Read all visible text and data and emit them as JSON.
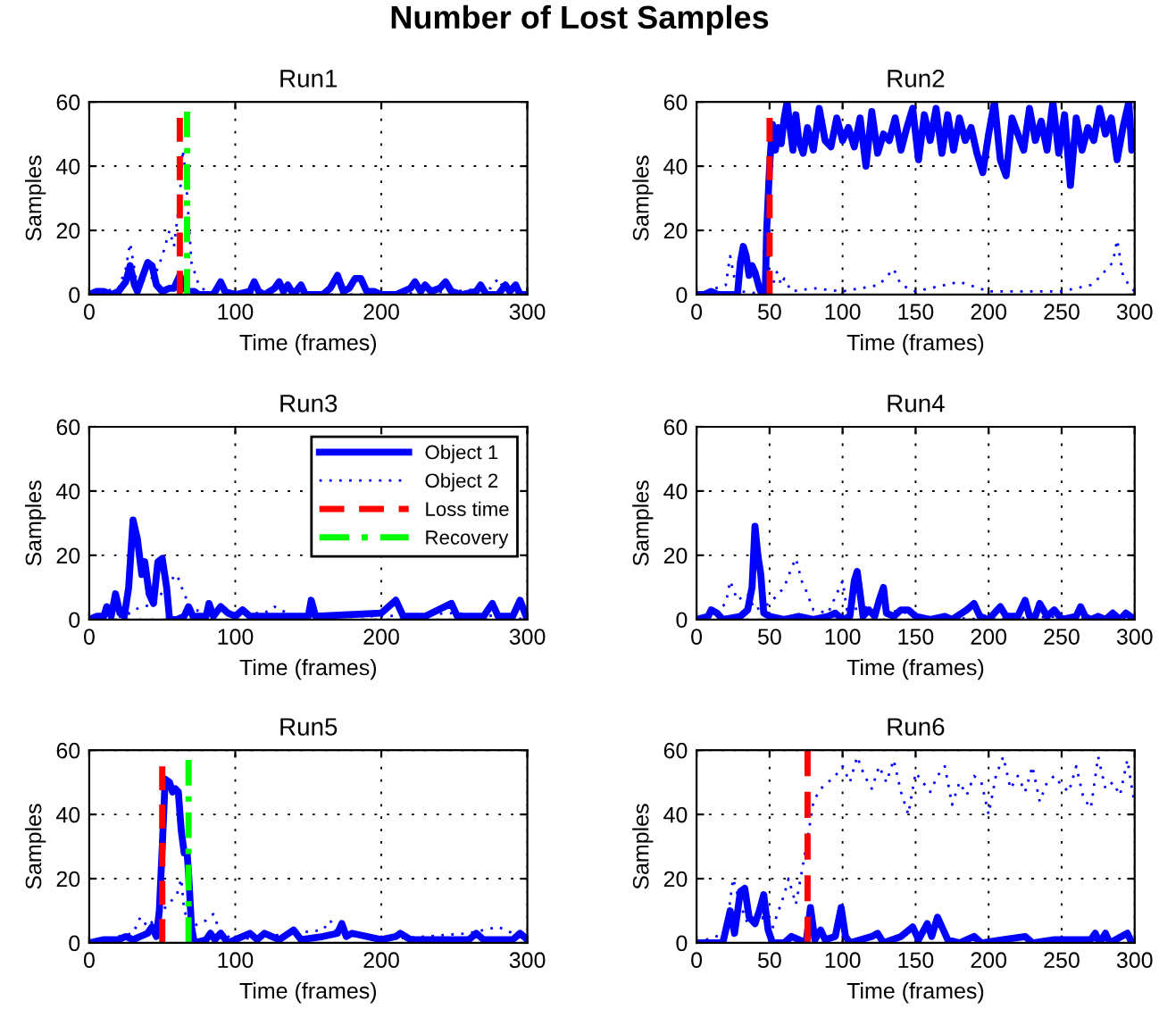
{
  "chart_data": [
    {
      "type": "line",
      "annotations": [
        "Number of Lost Samples"
      ],
      "title": "Run1",
      "xlabel": "Time (frames)",
      "ylabel": "Samples",
      "xlim": [
        0,
        300
      ],
      "ylim": [
        0,
        60
      ],
      "xticks": [
        0,
        100,
        200,
        300
      ],
      "yticks": [
        0,
        20,
        40,
        60
      ],
      "grid": true,
      "legend": false,
      "series": [
        {
          "color": "#0000ff",
          "line_style": "solid",
          "x": [
            0,
            5,
            10,
            15,
            20,
            25,
            28,
            31,
            33,
            36,
            40,
            43,
            46,
            50,
            55,
            58,
            62,
            65,
            68,
            72,
            75,
            85,
            90,
            93,
            100,
            110,
            113,
            116,
            120,
            127,
            130,
            133,
            136,
            140,
            145,
            148,
            160,
            165,
            170,
            174,
            178,
            182,
            186,
            190,
            195,
            200,
            210,
            220,
            223,
            227,
            230,
            234,
            240,
            244,
            248,
            255,
            265,
            268,
            272,
            280,
            285,
            288,
            292,
            295,
            300
          ],
          "values": [
            0,
            1,
            1,
            0,
            1,
            4,
            9,
            3,
            1,
            5,
            10,
            9,
            3,
            1,
            2,
            2,
            6,
            2,
            1,
            1,
            0,
            0,
            4,
            1,
            0,
            1,
            4,
            1,
            0,
            2,
            4,
            1,
            3,
            0,
            3,
            0,
            0,
            2,
            6,
            1,
            2,
            5,
            5,
            1,
            1,
            0,
            0,
            2,
            4,
            1,
            3,
            1,
            2,
            4,
            1,
            0,
            1,
            3,
            0,
            0,
            3,
            1,
            3,
            0,
            0
          ]
        },
        {
          "color": "#0000ff",
          "line_style": "dotted",
          "x": [
            0,
            20,
            25,
            28,
            32,
            40,
            45,
            50,
            55,
            58,
            62,
            64,
            66,
            70,
            75,
            80,
            100,
            150,
            200,
            250,
            275,
            280,
            285,
            300
          ],
          "values": [
            0,
            2,
            8,
            16,
            5,
            4,
            6,
            12,
            20,
            15,
            30,
            45,
            38,
            10,
            3,
            1,
            1,
            0,
            0,
            1,
            2,
            5,
            1,
            0
          ]
        },
        {
          "color": "#ff0000",
          "line_style": "dashed",
          "x": [
            62,
            62
          ],
          "values": [
            0,
            55
          ]
        },
        {
          "color": "#00ff00",
          "line_style": "dashdot",
          "x": [
            67,
            67
          ],
          "values": [
            0,
            57
          ]
        }
      ]
    },
    {
      "type": "line",
      "title": "Run2",
      "xlabel": "Time (frames)",
      "ylabel": "Samples",
      "xlim": [
        0,
        300
      ],
      "ylim": [
        0,
        60
      ],
      "xticks": [
        0,
        50,
        100,
        150,
        200,
        250,
        300
      ],
      "yticks": [
        0,
        20,
        40,
        60
      ],
      "grid": true,
      "legend": false,
      "series": [
        {
          "color": "#0000ff",
          "line_style": "solid",
          "x": [
            0,
            5,
            10,
            15,
            25,
            28,
            30,
            32,
            34,
            36,
            38,
            40,
            43,
            45,
            47,
            48,
            50,
            52,
            54,
            56,
            58,
            60,
            62,
            64,
            66,
            68,
            70,
            73,
            76,
            80,
            84,
            88,
            92,
            96,
            100,
            104,
            108,
            112,
            116,
            120,
            124,
            128,
            132,
            136,
            140,
            144,
            148,
            152,
            156,
            160,
            164,
            168,
            172,
            176,
            180,
            184,
            188,
            192,
            196,
            200,
            204,
            208,
            212,
            216,
            220,
            224,
            228,
            232,
            236,
            240,
            244,
            248,
            252,
            256,
            260,
            264,
            268,
            272,
            276,
            280,
            284,
            288,
            292,
            296,
            298,
            300
          ],
          "values": [
            0,
            0,
            1,
            0,
            0,
            0,
            10,
            15,
            12,
            6,
            9,
            7,
            2,
            0,
            0,
            20,
            40,
            53,
            45,
            52,
            47,
            55,
            60,
            52,
            45,
            56,
            48,
            44,
            52,
            45,
            58,
            48,
            46,
            55,
            48,
            52,
            46,
            55,
            40,
            57,
            44,
            50,
            48,
            55,
            45,
            52,
            58,
            42,
            56,
            48,
            58,
            44,
            56,
            45,
            55,
            48,
            52,
            44,
            38,
            50,
            60,
            42,
            37,
            55,
            50,
            45,
            58,
            48,
            54,
            45,
            60,
            44,
            56,
            34,
            55,
            45,
            52,
            48,
            58,
            50,
            55,
            42,
            52,
            60,
            45,
            50
          ]
        },
        {
          "color": "#0000ff",
          "line_style": "dotted",
          "x": [
            0,
            20,
            23,
            26,
            30,
            50,
            55,
            58,
            60,
            65,
            80,
            100,
            125,
            135,
            140,
            150,
            180,
            200,
            250,
            270,
            275,
            285,
            288,
            292,
            296,
            300
          ],
          "values": [
            0,
            3,
            12,
            5,
            1,
            0,
            7,
            3,
            5,
            1,
            2,
            1,
            3,
            8,
            3,
            1,
            4,
            1,
            1,
            3,
            5,
            10,
            17,
            6,
            3,
            1
          ]
        },
        {
          "color": "#ff0000",
          "line_style": "dashed",
          "x": [
            50,
            50
          ],
          "values": [
            0,
            55
          ]
        }
      ]
    },
    {
      "type": "line",
      "title": "Run3",
      "xlabel": "Time (frames)",
      "ylabel": "Samples",
      "xlim": [
        0,
        300
      ],
      "ylim": [
        0,
        60
      ],
      "xticks": [
        0,
        100,
        200,
        300
      ],
      "yticks": [
        0,
        20,
        40,
        60
      ],
      "grid": true,
      "legend": "top right",
      "series": [
        {
          "name": "Object 1",
          "color": "#0000ff",
          "line_style": "solid",
          "x": [
            0,
            5,
            10,
            12,
            15,
            18,
            21,
            24,
            27,
            30,
            33,
            36,
            38,
            41,
            44,
            47,
            50,
            53,
            55,
            60,
            65,
            68,
            71,
            80,
            82,
            85,
            90,
            95,
            100,
            105,
            110,
            150,
            152,
            155,
            200,
            205,
            210,
            215,
            230,
            248,
            252,
            270,
            276,
            280,
            290,
            295,
            300
          ],
          "values": [
            0,
            1,
            1,
            4,
            1,
            8,
            2,
            1,
            10,
            31,
            25,
            14,
            18,
            8,
            5,
            18,
            19,
            10,
            0,
            0,
            1,
            4,
            1,
            1,
            5,
            1,
            4,
            2,
            1,
            3,
            1,
            1,
            6,
            1,
            2,
            4,
            6,
            1,
            1,
            5,
            1,
            1,
            5,
            1,
            1,
            6,
            0
          ]
        },
        {
          "name": "Object 2",
          "color": "#0000ff",
          "line_style": "dotted",
          "x": [
            0,
            25,
            30,
            45,
            55,
            60,
            65,
            70,
            90,
            120,
            127,
            140,
            200,
            250,
            280,
            300
          ],
          "values": [
            0,
            1,
            3,
            5,
            12,
            14,
            8,
            3,
            2,
            2,
            4,
            1,
            1,
            2,
            1,
            0
          ]
        },
        {
          "name": "Loss time",
          "color": "#ff0000",
          "line_style": "dashed"
        },
        {
          "name": "Recovery",
          "color": "#00ff00",
          "line_style": "dashdot"
        }
      ]
    },
    {
      "type": "line",
      "title": "Run4",
      "xlabel": "Time (frames)",
      "ylabel": "Samples",
      "xlim": [
        0,
        300
      ],
      "ylim": [
        0,
        60
      ],
      "xticks": [
        0,
        50,
        100,
        150,
        200,
        250,
        300
      ],
      "yticks": [
        0,
        20,
        40,
        60
      ],
      "grid": true,
      "legend": false,
      "series": [
        {
          "color": "#0000ff",
          "line_style": "solid",
          "x": [
            0,
            8,
            10,
            14,
            18,
            30,
            35,
            38,
            40,
            42,
            44,
            46,
            50,
            60,
            70,
            80,
            90,
            95,
            100,
            105,
            108,
            110,
            112,
            114,
            118,
            122,
            125,
            128,
            130,
            135,
            140,
            145,
            150,
            160,
            170,
            175,
            185,
            190,
            194,
            200,
            208,
            212,
            220,
            225,
            228,
            232,
            235,
            240,
            245,
            250,
            260,
            263,
            266,
            270,
            275,
            280,
            285,
            290,
            294,
            300
          ],
          "values": [
            0,
            1,
            3,
            2,
            0,
            1,
            3,
            10,
            29,
            20,
            14,
            2,
            1,
            0,
            1,
            0,
            1,
            2,
            0,
            1,
            12,
            15,
            8,
            1,
            3,
            1,
            6,
            10,
            2,
            1,
            3,
            3,
            1,
            0,
            1,
            0,
            3,
            5,
            1,
            0,
            4,
            1,
            1,
            6,
            1,
            1,
            5,
            1,
            3,
            0,
            1,
            4,
            1,
            0,
            1,
            0,
            2,
            0,
            2,
            0
          ]
        },
        {
          "color": "#0000ff",
          "line_style": "dotted",
          "x": [
            0,
            15,
            20,
            23,
            28,
            35,
            40,
            50,
            60,
            65,
            68,
            72,
            75,
            80,
            90,
            95,
            100,
            103,
            120,
            130,
            145,
            150,
            200,
            250,
            300
          ],
          "values": [
            0,
            3,
            5,
            12,
            6,
            8,
            3,
            5,
            10,
            16,
            19,
            12,
            9,
            3,
            2,
            7,
            12,
            3,
            4,
            3,
            2,
            1,
            0,
            1,
            0
          ]
        }
      ]
    },
    {
      "type": "line",
      "title": "Run5",
      "xlabel": "Time (frames)",
      "ylabel": "Samples",
      "xlim": [
        0,
        300
      ],
      "ylim": [
        0,
        60
      ],
      "xticks": [
        0,
        100,
        200,
        300
      ],
      "yticks": [
        0,
        20,
        40,
        60
      ],
      "grid": true,
      "legend": false,
      "series": [
        {
          "color": "#0000ff",
          "line_style": "solid",
          "x": [
            0,
            10,
            20,
            25,
            30,
            35,
            40,
            43,
            46,
            48,
            50,
            52,
            55,
            57,
            59,
            61,
            63,
            65,
            67,
            68,
            70,
            72,
            80,
            83,
            86,
            90,
            95,
            100,
            110,
            115,
            120,
            130,
            140,
            145,
            160,
            170,
            173,
            176,
            180,
            190,
            200,
            210,
            213,
            220,
            250,
            260,
            265,
            270,
            290,
            295,
            300
          ],
          "values": [
            0,
            1,
            1,
            2,
            1,
            2,
            3,
            5,
            2,
            10,
            30,
            51,
            50,
            47,
            48,
            47,
            35,
            28,
            28,
            22,
            5,
            0,
            1,
            3,
            1,
            3,
            0,
            1,
            3,
            1,
            3,
            1,
            4,
            1,
            2,
            3,
            6,
            2,
            3,
            2,
            1,
            2,
            3,
            1,
            1,
            1,
            3,
            1,
            1,
            3,
            1
          ]
        },
        {
          "color": "#0000ff",
          "line_style": "dotted",
          "x": [
            0,
            20,
            30,
            35,
            40,
            50,
            60,
            63,
            65,
            70,
            80,
            85,
            90,
            100,
            160,
            165,
            170,
            200,
            260,
            280,
            300
          ],
          "values": [
            0,
            2,
            3,
            8,
            5,
            10,
            15,
            20,
            10,
            5,
            7,
            9,
            3,
            1,
            4,
            7,
            3,
            1,
            3,
            5,
            1
          ]
        },
        {
          "color": "#ff0000",
          "line_style": "dashed",
          "x": [
            50,
            50
          ],
          "values": [
            0,
            55
          ]
        },
        {
          "color": "#00ff00",
          "line_style": "dashdot",
          "x": [
            68,
            68
          ],
          "values": [
            0,
            57
          ]
        }
      ]
    },
    {
      "type": "line",
      "title": "Run6",
      "xlabel": "Time (frames)",
      "ylabel": "Samples",
      "xlim": [
        0,
        300
      ],
      "ylim": [
        0,
        60
      ],
      "xticks": [
        0,
        50,
        100,
        150,
        200,
        250,
        300
      ],
      "yticks": [
        0,
        20,
        40,
        60
      ],
      "grid": true,
      "legend": false,
      "series": [
        {
          "color": "#0000ff",
          "line_style": "solid",
          "x": [
            0,
            18,
            20,
            23,
            26,
            30,
            33,
            36,
            40,
            43,
            46,
            49,
            52,
            60,
            65,
            70,
            75,
            78,
            81,
            85,
            88,
            95,
            99,
            102,
            105,
            120,
            124,
            128,
            140,
            148,
            152,
            158,
            161,
            165,
            168,
            172,
            180,
            190,
            195,
            210,
            225,
            230,
            245,
            270,
            273,
            276,
            280,
            283,
            295,
            298,
            300
          ],
          "values": [
            0,
            0,
            4,
            10,
            3,
            16,
            17,
            8,
            6,
            10,
            15,
            4,
            0,
            0,
            2,
            1,
            0,
            11,
            1,
            4,
            1,
            2,
            11,
            2,
            0,
            2,
            3,
            0,
            2,
            5,
            1,
            6,
            2,
            8,
            5,
            1,
            0,
            2,
            0,
            1,
            2,
            0,
            1,
            1,
            3,
            0,
            3,
            0,
            3,
            0,
            0
          ]
        },
        {
          "color": "#0000ff",
          "line_style": "dotted",
          "x": [
            0,
            20,
            25,
            30,
            35,
            45,
            50,
            60,
            63,
            68,
            72,
            75,
            78,
            80,
            85,
            90,
            95,
            100,
            105,
            110,
            115,
            120,
            125,
            130,
            135,
            140,
            145,
            150,
            155,
            160,
            165,
            170,
            175,
            180,
            185,
            190,
            195,
            200,
            205,
            210,
            215,
            220,
            225,
            230,
            235,
            240,
            245,
            250,
            255,
            260,
            265,
            270,
            275,
            280,
            285,
            290,
            295,
            300
          ],
          "values": [
            0,
            3,
            20,
            12,
            6,
            8,
            2,
            15,
            20,
            12,
            22,
            30,
            38,
            44,
            48,
            50,
            52,
            55,
            50,
            58,
            52,
            48,
            55,
            50,
            57,
            47,
            40,
            53,
            50,
            47,
            52,
            55,
            43,
            50,
            46,
            52,
            50,
            40,
            52,
            58,
            48,
            52,
            47,
            55,
            44,
            50,
            52,
            49,
            47,
            55,
            45,
            42,
            58,
            48,
            50,
            46,
            57,
            43
          ]
        },
        {
          "color": "#ff0000",
          "line_style": "dashed",
          "x": [
            76,
            76
          ],
          "values": [
            0,
            60
          ]
        }
      ]
    }
  ]
}
